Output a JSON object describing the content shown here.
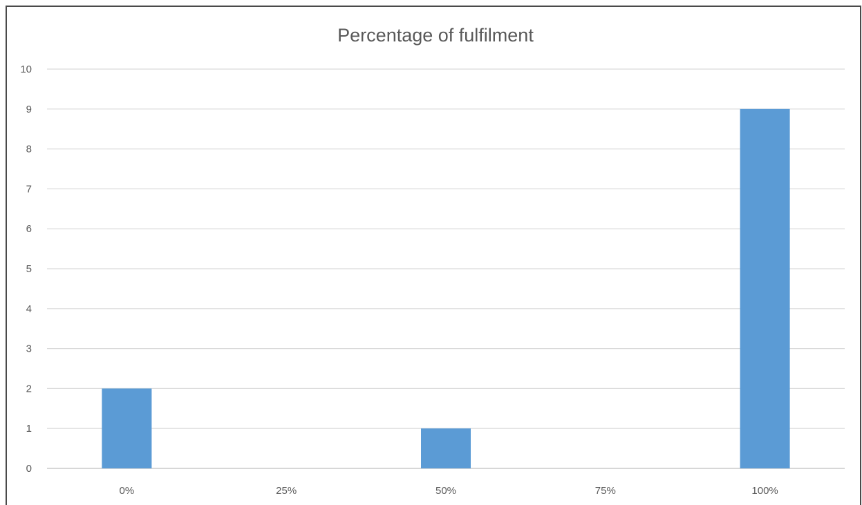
{
  "chart_data": {
    "type": "bar",
    "title": "Percentage of fulfilment",
    "categories": [
      "0%",
      "25%",
      "50%",
      "75%",
      "100%"
    ],
    "values": [
      2,
      0,
      1,
      0,
      9
    ],
    "xlabel": "",
    "ylabel": "",
    "ylim": [
      0,
      10
    ],
    "yticks": [
      "0",
      "1",
      "2",
      "3",
      "4",
      "5",
      "6",
      "7",
      "8",
      "9",
      "10"
    ],
    "grid": true,
    "legend": "none",
    "bar_color": "#5b9bd5"
  }
}
